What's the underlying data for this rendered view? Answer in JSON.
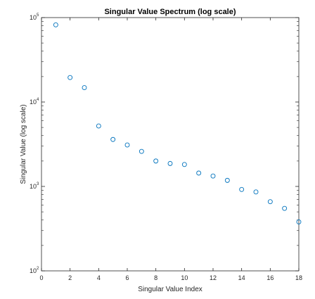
{
  "chart_data": {
    "type": "scatter",
    "title": "Singular Value Spectrum (log scale)",
    "xlabel": "Singular Value Index",
    "ylabel": "Singular Value (log scale)",
    "xlim": [
      0,
      18
    ],
    "ylim": [
      100,
      100000
    ],
    "yscale": "log",
    "grid": false,
    "marker": "circle-open",
    "color": "#0072bd",
    "x_ticks": [
      0,
      2,
      4,
      6,
      8,
      10,
      12,
      14,
      16,
      18
    ],
    "y_ticks": [
      {
        "value": 100,
        "base": "10",
        "exp": "2"
      },
      {
        "value": 1000,
        "base": "10",
        "exp": "3"
      },
      {
        "value": 10000,
        "base": "10",
        "exp": "4"
      },
      {
        "value": 100000,
        "base": "10",
        "exp": "5"
      }
    ],
    "x": [
      1,
      2,
      3,
      4,
      5,
      6,
      7,
      8,
      9,
      10,
      11,
      12,
      13,
      14,
      15,
      16,
      17,
      18
    ],
    "y": [
      82000,
      19500,
      14800,
      5200,
      3600,
      3100,
      2600,
      2000,
      1870,
      1820,
      1440,
      1330,
      1180,
      920,
      860,
      660,
      550,
      380
    ]
  }
}
